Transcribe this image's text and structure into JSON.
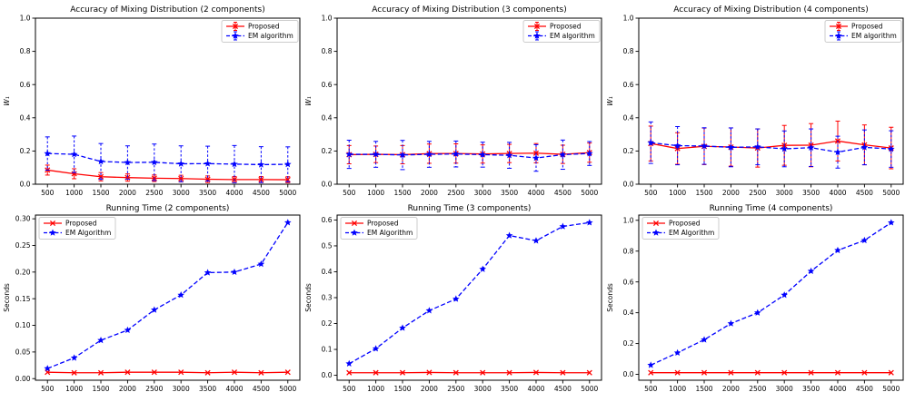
{
  "figure": {
    "background": "#ffffff",
    "colors": {
      "proposed": "#ff0000",
      "em": "#0000ff",
      "axis": "#000000",
      "legend_border": "#cccccc"
    }
  },
  "chart_data": [
    {
      "type": "line",
      "row": 0,
      "title": "Accuracy of Mixing Distribution (2 components)",
      "ylabel": "W₁",
      "ylabel_italic": true,
      "x": [
        500,
        1000,
        1500,
        2000,
        2500,
        3000,
        3500,
        4000,
        4500,
        5000
      ],
      "xlim": [
        275,
        5225
      ],
      "ylim": [
        0.0,
        1.0
      ],
      "xticks": {
        "values": [
          500,
          1000,
          1500,
          2000,
          2500,
          3000,
          3500,
          4000,
          4500,
          5000
        ],
        "labels": [
          "500",
          "1000",
          "1500",
          "2000",
          "2500",
          "3000",
          "3500",
          "4000",
          "4500",
          "5000"
        ]
      },
      "yticks": {
        "values": [
          0.0,
          0.2,
          0.4,
          0.6,
          0.8,
          1.0
        ],
        "labels": [
          "0.0",
          "0.2",
          "0.4",
          "0.6",
          "0.8",
          "1.0"
        ]
      },
      "legend": {
        "position": "upper right",
        "errorbar_sample": true
      },
      "series": [
        {
          "name": "Proposed",
          "color": "#ff0000",
          "linestyle": "solid",
          "marker": "x",
          "values": [
            0.085,
            0.063,
            0.045,
            0.04,
            0.036,
            0.034,
            0.03,
            0.028,
            0.028,
            0.027
          ],
          "err": [
            0.03,
            0.03,
            0.025,
            0.022,
            0.02,
            0.02,
            0.02,
            0.018,
            0.018,
            0.018
          ]
        },
        {
          "name": "EM algorithm",
          "color": "#0000ff",
          "linestyle": "dashed",
          "marker": "star",
          "values": [
            0.185,
            0.18,
            0.137,
            0.131,
            0.132,
            0.123,
            0.124,
            0.121,
            0.118,
            0.12
          ],
          "err": [
            0.1,
            0.11,
            0.108,
            0.1,
            0.11,
            0.108,
            0.105,
            0.112,
            0.108,
            0.105
          ]
        }
      ]
    },
    {
      "type": "line",
      "row": 0,
      "title": "Accuracy of Mixing Distribution (3 components)",
      "ylabel": "W₁",
      "ylabel_italic": true,
      "x": [
        500,
        1000,
        1500,
        2000,
        2500,
        3000,
        3500,
        4000,
        4500,
        5000
      ],
      "xlim": [
        275,
        5225
      ],
      "ylim": [
        0.0,
        1.0
      ],
      "xticks": {
        "values": [
          500,
          1000,
          1500,
          2000,
          2500,
          3000,
          3500,
          4000,
          4500,
          5000
        ],
        "labels": [
          "500",
          "1000",
          "1500",
          "2000",
          "2500",
          "3000",
          "3500",
          "4000",
          "4500",
          "5000"
        ]
      },
      "yticks": {
        "values": [
          0.0,
          0.2,
          0.4,
          0.6,
          0.8,
          1.0
        ],
        "labels": [
          "0.0",
          "0.2",
          "0.4",
          "0.6",
          "0.8",
          "1.0"
        ]
      },
      "legend": {
        "position": "upper right",
        "errorbar_sample": true
      },
      "series": [
        {
          "name": "Proposed",
          "color": "#ff0000",
          "linestyle": "solid",
          "marker": "x",
          "values": [
            0.178,
            0.18,
            0.178,
            0.184,
            0.185,
            0.182,
            0.185,
            0.187,
            0.18,
            0.19
          ],
          "err": [
            0.055,
            0.05,
            0.055,
            0.058,
            0.058,
            0.055,
            0.055,
            0.058,
            0.055,
            0.058
          ]
        },
        {
          "name": "EM algorithm",
          "color": "#0000ff",
          "linestyle": "dashed",
          "marker": "star",
          "values": [
            0.18,
            0.18,
            0.176,
            0.18,
            0.182,
            0.178,
            0.174,
            0.158,
            0.178,
            0.185
          ],
          "err": [
            0.085,
            0.078,
            0.088,
            0.078,
            0.078,
            0.075,
            0.078,
            0.08,
            0.088,
            0.072
          ]
        }
      ]
    },
    {
      "type": "line",
      "row": 0,
      "title": "Accuracy of Mixing Distribution (4 components)",
      "ylabel": "W₁",
      "ylabel_italic": true,
      "x": [
        500,
        1000,
        1500,
        2000,
        2500,
        3000,
        3500,
        4000,
        4500,
        5000
      ],
      "xlim": [
        275,
        5225
      ],
      "ylim": [
        0.0,
        1.0
      ],
      "xticks": {
        "values": [
          500,
          1000,
          1500,
          2000,
          2500,
          3000,
          3500,
          4000,
          4500,
          5000
        ],
        "labels": [
          "500",
          "1000",
          "1500",
          "2000",
          "2500",
          "3000",
          "3500",
          "4000",
          "4500",
          "5000"
        ]
      },
      "yticks": {
        "values": [
          0.0,
          0.2,
          0.4,
          0.6,
          0.8,
          1.0
        ],
        "labels": [
          "0.0",
          "0.2",
          "0.4",
          "0.6",
          "0.8",
          "1.0"
        ]
      },
      "legend": {
        "position": "upper right",
        "errorbar_sample": true
      },
      "series": [
        {
          "name": "Proposed",
          "color": "#ff0000",
          "linestyle": "solid",
          "marker": "x",
          "values": [
            0.245,
            0.215,
            0.228,
            0.224,
            0.218,
            0.234,
            0.235,
            0.26,
            0.237,
            0.218
          ],
          "err": [
            0.105,
            0.095,
            0.11,
            0.115,
            0.115,
            0.12,
            0.13,
            0.12,
            0.12,
            0.125
          ]
        },
        {
          "name": "EM algorithm",
          "color": "#0000ff",
          "linestyle": "dashed",
          "marker": "star",
          "values": [
            0.25,
            0.232,
            0.23,
            0.222,
            0.225,
            0.213,
            0.22,
            0.193,
            0.222,
            0.212
          ],
          "err": [
            0.125,
            0.115,
            0.11,
            0.117,
            0.108,
            0.108,
            0.113,
            0.096,
            0.105,
            0.11
          ]
        }
      ]
    },
    {
      "type": "line",
      "row": 1,
      "title": "Running Time (2 components)",
      "ylabel": "Seconds",
      "ylabel_italic": false,
      "x": [
        500,
        1000,
        1500,
        2000,
        2500,
        3000,
        3500,
        4000,
        4500,
        5000
      ],
      "xlim": [
        275,
        5225
      ],
      "ylim": [
        -0.003,
        0.307
      ],
      "xticks": {
        "values": [
          500,
          1000,
          1500,
          2000,
          2500,
          3000,
          3500,
          4000,
          4500,
          5000
        ],
        "labels": [
          "500",
          "1000",
          "1500",
          "2000",
          "2500",
          "3000",
          "3500",
          "4000",
          "4500",
          "5000"
        ]
      },
      "yticks": {
        "values": [
          0.0,
          0.05,
          0.1,
          0.15,
          0.2,
          0.25,
          0.3
        ],
        "labels": [
          "0.00",
          "0.05",
          "0.10",
          "0.15",
          "0.20",
          "0.25",
          "0.30"
        ]
      },
      "legend": {
        "position": "upper left",
        "errorbar_sample": false
      },
      "series": [
        {
          "name": "Proposed",
          "color": "#ff0000",
          "linestyle": "solid",
          "marker": "x",
          "values": [
            0.012,
            0.011,
            0.011,
            0.012,
            0.012,
            0.012,
            0.011,
            0.012,
            0.011,
            0.012
          ],
          "err": null
        },
        {
          "name": "EM Algorithm",
          "color": "#0000ff",
          "linestyle": "dashed",
          "marker": "star",
          "values": [
            0.019,
            0.039,
            0.072,
            0.091,
            0.129,
            0.157,
            0.199,
            0.2,
            0.215,
            0.293
          ],
          "err": null
        }
      ]
    },
    {
      "type": "line",
      "row": 1,
      "title": "Running Time (3 components)",
      "ylabel": "Seconds",
      "ylabel_italic": false,
      "x": [
        500,
        1000,
        1500,
        2000,
        2500,
        3000,
        3500,
        4000,
        4500,
        5000
      ],
      "xlim": [
        275,
        5225
      ],
      "ylim": [
        -0.019,
        0.619
      ],
      "xticks": {
        "values": [
          500,
          1000,
          1500,
          2000,
          2500,
          3000,
          3500,
          4000,
          4500,
          5000
        ],
        "labels": [
          "500",
          "1000",
          "1500",
          "2000",
          "2500",
          "3000",
          "3500",
          "4000",
          "4500",
          "5000"
        ]
      },
      "yticks": {
        "values": [
          0.0,
          0.1,
          0.2,
          0.3,
          0.4,
          0.5,
          0.6
        ],
        "labels": [
          "0.0",
          "0.1",
          "0.2",
          "0.3",
          "0.4",
          "0.5",
          "0.6"
        ]
      },
      "legend": {
        "position": "upper left",
        "errorbar_sample": false
      },
      "series": [
        {
          "name": "Proposed",
          "color": "#ff0000",
          "linestyle": "solid",
          "marker": "x",
          "values": [
            0.01,
            0.01,
            0.01,
            0.011,
            0.01,
            0.01,
            0.01,
            0.011,
            0.01,
            0.01
          ],
          "err": null
        },
        {
          "name": "EM Algorithm",
          "color": "#0000ff",
          "linestyle": "dashed",
          "marker": "star",
          "values": [
            0.045,
            0.103,
            0.183,
            0.25,
            0.295,
            0.41,
            0.54,
            0.52,
            0.575,
            0.59
          ],
          "err": null
        }
      ]
    },
    {
      "type": "line",
      "row": 1,
      "title": "Running Time (4 components)",
      "ylabel": "Seconds",
      "ylabel_italic": false,
      "x": [
        500,
        1000,
        1500,
        2000,
        2500,
        3000,
        3500,
        4000,
        4500,
        5000
      ],
      "xlim": [
        275,
        5225
      ],
      "ylim": [
        -0.038,
        1.034
      ],
      "xticks": {
        "values": [
          500,
          1000,
          1500,
          2000,
          2500,
          3000,
          3500,
          4000,
          4500,
          5000
        ],
        "labels": [
          "500",
          "1000",
          "1500",
          "2000",
          "2500",
          "3000",
          "3500",
          "4000",
          "4500",
          "5000"
        ]
      },
      "yticks": {
        "values": [
          0.0,
          0.2,
          0.4,
          0.6,
          0.8,
          1.0
        ],
        "labels": [
          "0.0",
          "0.2",
          "0.4",
          "0.6",
          "0.8",
          "1.0"
        ]
      },
      "legend": {
        "position": "upper left",
        "errorbar_sample": false
      },
      "series": [
        {
          "name": "Proposed",
          "color": "#ff0000",
          "linestyle": "solid",
          "marker": "x",
          "values": [
            0.011,
            0.011,
            0.011,
            0.011,
            0.011,
            0.011,
            0.011,
            0.011,
            0.011,
            0.011
          ],
          "err": null
        },
        {
          "name": "EM Algorithm",
          "color": "#0000ff",
          "linestyle": "dashed",
          "marker": "star",
          "values": [
            0.06,
            0.14,
            0.225,
            0.33,
            0.4,
            0.515,
            0.67,
            0.805,
            0.87,
            0.985
          ],
          "err": null
        }
      ]
    }
  ]
}
